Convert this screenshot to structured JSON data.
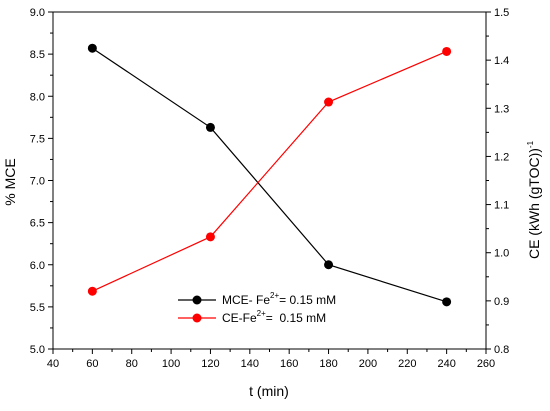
{
  "chart_data": {
    "type": "line",
    "x": [
      60,
      120,
      180,
      240
    ],
    "series": [
      {
        "name": "MCE- Fe2+= 0.15 mM",
        "name_parts": {
          "base": "MCE- Fe",
          "sup": "2+",
          "rest": "= 0.15 mM"
        },
        "axis": "left",
        "color": "#000000",
        "values": [
          8.57,
          7.63,
          6.0,
          5.56
        ]
      },
      {
        "name": "CE-Fe2+= 0.15 mM",
        "name_parts": {
          "base": "CE-Fe",
          "sup": "2+",
          "rest": "=  0.15 mM"
        },
        "axis": "right",
        "color": "#ff0000",
        "values": [
          0.92,
          1.033,
          1.313,
          1.418
        ]
      }
    ],
    "xlabel": "t (min)",
    "ylabel_left": "% MCE",
    "ylabel_right": {
      "base": "CE (kWh (gTOC))",
      "sup": "-1"
    },
    "xlim": [
      40,
      260
    ],
    "ylim_left": [
      5.0,
      9.0
    ],
    "ylim_right": [
      0.8,
      1.5
    ],
    "xticks": [
      40,
      60,
      80,
      100,
      120,
      140,
      160,
      180,
      200,
      220,
      240,
      260
    ],
    "yticks_left": [
      "5.0",
      "5.5",
      "6.0",
      "6.5",
      "7.0",
      "7.5",
      "8.0",
      "8.5",
      "9.0"
    ],
    "yticks_right": [
      "0.8",
      "0.9",
      "1.0",
      "1.1",
      "1.2",
      "1.3",
      "1.4",
      "1.5"
    ],
    "grid": false,
    "legend_position": "bottom-center"
  }
}
